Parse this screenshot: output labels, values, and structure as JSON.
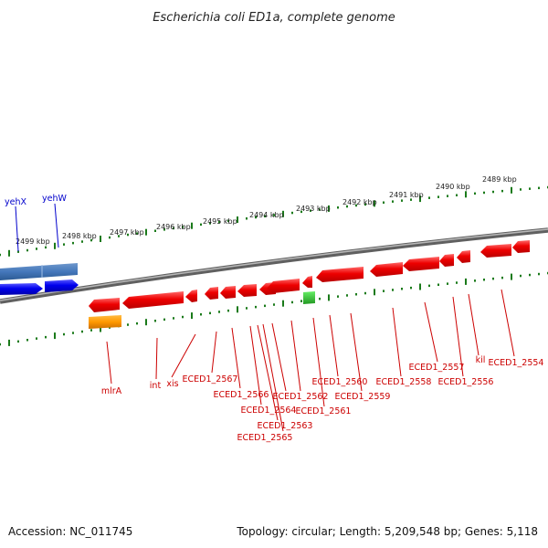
{
  "title": "Escherichia coli ED1a, complete genome",
  "accession_text": "Accession: NC_011745",
  "topology_text": "Topology: circular; Length: 5,209,548 bp; Genes: 5,118",
  "kbp_labels": [
    "2499 kbp",
    "2498 kbp",
    "2497 kbp",
    "2496 kbp",
    "2495 kbp",
    "2494 kbp",
    "2493 kbp",
    "2492 kbp",
    "2491 kbp",
    "2490 kbp",
    "2489 kbp"
  ],
  "colors": {
    "forward_gene": "#0000ee",
    "reverse_gene": "#ee0000",
    "trna": "#33cc33",
    "pseudo": "#ff9900",
    "cluster": "#4477bb",
    "backbone": "#808080",
    "tick": "#1a7a1a",
    "forward_label": "#0000cc",
    "reverse_label": "#cc0000"
  },
  "forward_labels": [
    "yehX",
    "yehW"
  ],
  "reverse_labels": [
    "mlrA",
    "int",
    "xis",
    "ECED1_2567",
    "ECED1_2566",
    "ECED1_2564",
    "ECED1_2563",
    "ECED1_2565",
    "ECED1_2562",
    "ECED1_2561",
    "ECED1_2560",
    "ECED1_2559",
    "ECED1_2558",
    "ECED1_2557",
    "ECED1_2556",
    "kil",
    "ECED1_2554"
  ]
}
